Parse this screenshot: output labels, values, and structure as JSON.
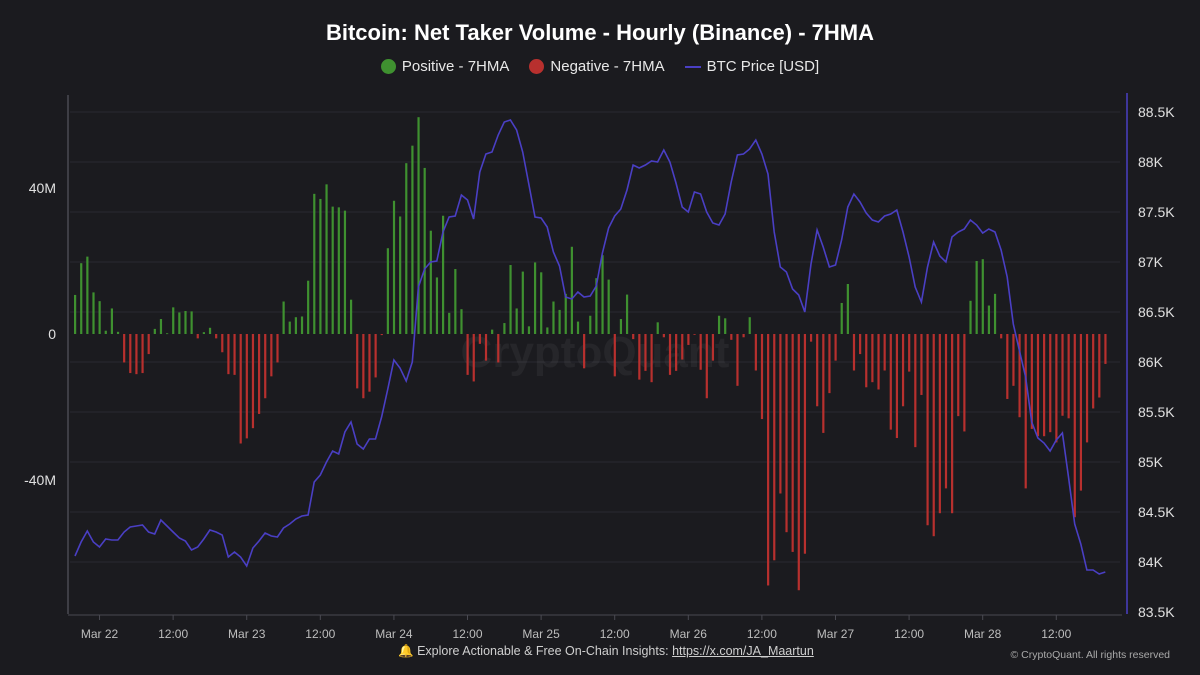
{
  "chart_data": {
    "type": "bar+line",
    "title": "Bitcoin: Net Taker Volume - Hourly (Binance) - 7HMA",
    "x": {
      "start": "Mar 21 20:00",
      "interval": "1h",
      "tick_labels": [
        "Mar 22",
        "12:00",
        "Mar 23",
        "12:00",
        "Mar 24",
        "12:00",
        "Mar 25",
        "12:00",
        "Mar 26",
        "12:00",
        "Mar 27",
        "12:00",
        "Mar 28",
        "12:00"
      ]
    },
    "y_left": {
      "ylim": [
        -72,
        66
      ],
      "ticks": [
        40,
        0,
        -40
      ],
      "tick_labels": [
        "40M",
        "0",
        "-40M"
      ],
      "unit": "M"
    },
    "y_right": {
      "ylim": [
        83.5,
        88.5
      ],
      "ticks": [
        88.5,
        88,
        87.5,
        87,
        86.5,
        86,
        85.5,
        85,
        84.5,
        84,
        83.5
      ],
      "tick_labels": [
        "88.5K",
        "88K",
        "87.5K",
        "87K",
        "86.5K",
        "86K",
        "85.5K",
        "85K",
        "84.5K",
        "84K",
        "83.5K"
      ],
      "unit": "K USD"
    },
    "grid": true,
    "legend_position": "top",
    "series": [
      {
        "name": "Positive - 7HMA",
        "color": "#3f9130",
        "type": "bar",
        "sign": "positive"
      },
      {
        "name": "Negative - 7HMA",
        "color": "#b8302e",
        "type": "bar",
        "sign": "negative"
      },
      {
        "name": "BTC Price [USD]",
        "color": "#4a3fc4",
        "type": "line",
        "axis": "right"
      }
    ],
    "net_taker_volume_m": [
      10.7,
      19.4,
      21.2,
      11.4,
      9,
      0.9,
      7,
      0.6,
      -7.8,
      -10.7,
      -11,
      -10.7,
      -5.5,
      1.4,
      4.1,
      0.2,
      7.3,
      5.9,
      6.3,
      6.2,
      -1.2,
      0.5,
      1.7,
      -1.2,
      -5,
      -11,
      -11.2,
      -30,
      -28.6,
      -25.8,
      -21.9,
      -17.6,
      -11.6,
      -7.8,
      8.9,
      3.4,
      4.6,
      4.8,
      14.6,
      38.4,
      37,
      41,
      34.9,
      34.7,
      33.8,
      9.4,
      -14.9,
      -17.6,
      -15.8,
      -11.9,
      -0.3,
      23.5,
      36.5,
      32.2,
      46.8,
      51.6,
      59.4,
      45.5,
      28.3,
      15.5,
      32.4,
      5.8,
      17.8,
      6.8,
      -11.2,
      -13,
      -2.7,
      -7.3,
      1.2,
      -7.8,
      3,
      18.9,
      7,
      17.1,
      2.1,
      19.6,
      16.9,
      1.8,
      8.9,
      6.6,
      11,
      23.9,
      3.4,
      -9.4,
      5,
      15.3,
      21.6,
      14.9,
      -11.6,
      4.1,
      10.8,
      -1.4,
      -12.5,
      -10.1,
      -13.2,
      3.2,
      -0.9,
      -11.2,
      -10.1,
      -7,
      -3,
      -0.2,
      -9.8,
      -17.6,
      -7.3,
      5,
      4.3,
      -1.6,
      -14.2,
      -0.9,
      4.6,
      -10,
      -23.3,
      -68.9,
      -62,
      -43.7,
      -54.3,
      -59.7,
      -70.2,
      -60.2,
      -2.1,
      -19.8,
      -27.1,
      -16.2,
      -7.3,
      8.5,
      13.7,
      -10,
      -5.5,
      -14.6,
      -13.2,
      -15.2,
      -10,
      -26.2,
      -28.5,
      -19.8,
      -10.3,
      -31,
      -16.7,
      -52.4,
      -55.4,
      -49.1,
      -42.3,
      -49.1,
      -22.5,
      -26.7,
      9.1,
      20,
      20.5,
      7.8,
      11,
      -1.2,
      -17.8,
      -14.2,
      -22.8,
      -42.3,
      -26,
      -28,
      -28,
      -26.9,
      -29.7,
      -22.4,
      -23.1,
      -50.2,
      -42.9,
      -29.7,
      -20.4,
      -17.4,
      -8.2
    ],
    "btc_price_k": [
      84.06,
      84.2,
      84.31,
      84.2,
      84.15,
      84.23,
      84.22,
      84.22,
      84.3,
      84.35,
      84.36,
      84.37,
      84.3,
      84.28,
      84.42,
      84.36,
      84.3,
      84.24,
      84.21,
      84.12,
      84.15,
      84.23,
      84.32,
      84.3,
      84.27,
      84.05,
      84.1,
      84.05,
      83.96,
      84.14,
      84.21,
      84.29,
      84.26,
      84.25,
      84.34,
      84.38,
      84.43,
      84.46,
      84.47,
      84.8,
      84.87,
      85.0,
      85.11,
      85.08,
      85.3,
      85.4,
      85.18,
      85.13,
      85.23,
      85.23,
      85.45,
      85.73,
      86.02,
      85.94,
      85.81,
      86.0,
      86.75,
      86.93,
      87.0,
      87.01,
      87.3,
      87.45,
      87.46,
      87.67,
      87.62,
      87.43,
      87.9,
      88.08,
      88.1,
      88.27,
      88.4,
      88.42,
      88.32,
      88.1,
      87.78,
      87.45,
      87.44,
      87.35,
      87.1,
      86.96,
      86.65,
      86.63,
      86.7,
      86.65,
      86.66,
      86.76,
      87.09,
      87.34,
      87.46,
      87.53,
      87.72,
      87.97,
      87.94,
      87.97,
      88.01,
      88.0,
      88.12,
      88.0,
      87.79,
      87.55,
      87.5,
      87.7,
      87.68,
      87.5,
      87.39,
      87.37,
      87.48,
      87.8,
      88.07,
      88.08,
      88.13,
      88.22,
      88.08,
      87.88,
      87.3,
      86.95,
      86.9,
      86.73,
      86.67,
      86.5,
      86.98,
      87.32,
      87.15,
      86.95,
      86.97,
      87.22,
      87.55,
      87.68,
      87.6,
      87.49,
      87.42,
      87.4,
      87.46,
      87.48,
      87.52,
      87.3,
      87.05,
      86.75,
      86.6,
      86.95,
      87.2,
      87.06,
      87.0,
      87.25,
      87.3,
      87.33,
      87.42,
      87.37,
      87.29,
      87.33,
      87.3,
      87.12,
      86.85,
      86.38,
      86.11,
      85.85,
      85.4,
      85.24,
      85.19,
      85.11,
      85.22,
      85.29,
      84.85,
      84.38,
      84.18,
      83.92,
      83.92,
      83.88,
      83.9
    ]
  },
  "watermark": "CryptoQuant",
  "footer": {
    "bell_icon": "bell-icon",
    "text": "Explore Actionable & Free On-Chain Insights:",
    "link": "https://x.com/JA_Maartun",
    "copyright": "© CryptoQuant. All rights reserved"
  }
}
